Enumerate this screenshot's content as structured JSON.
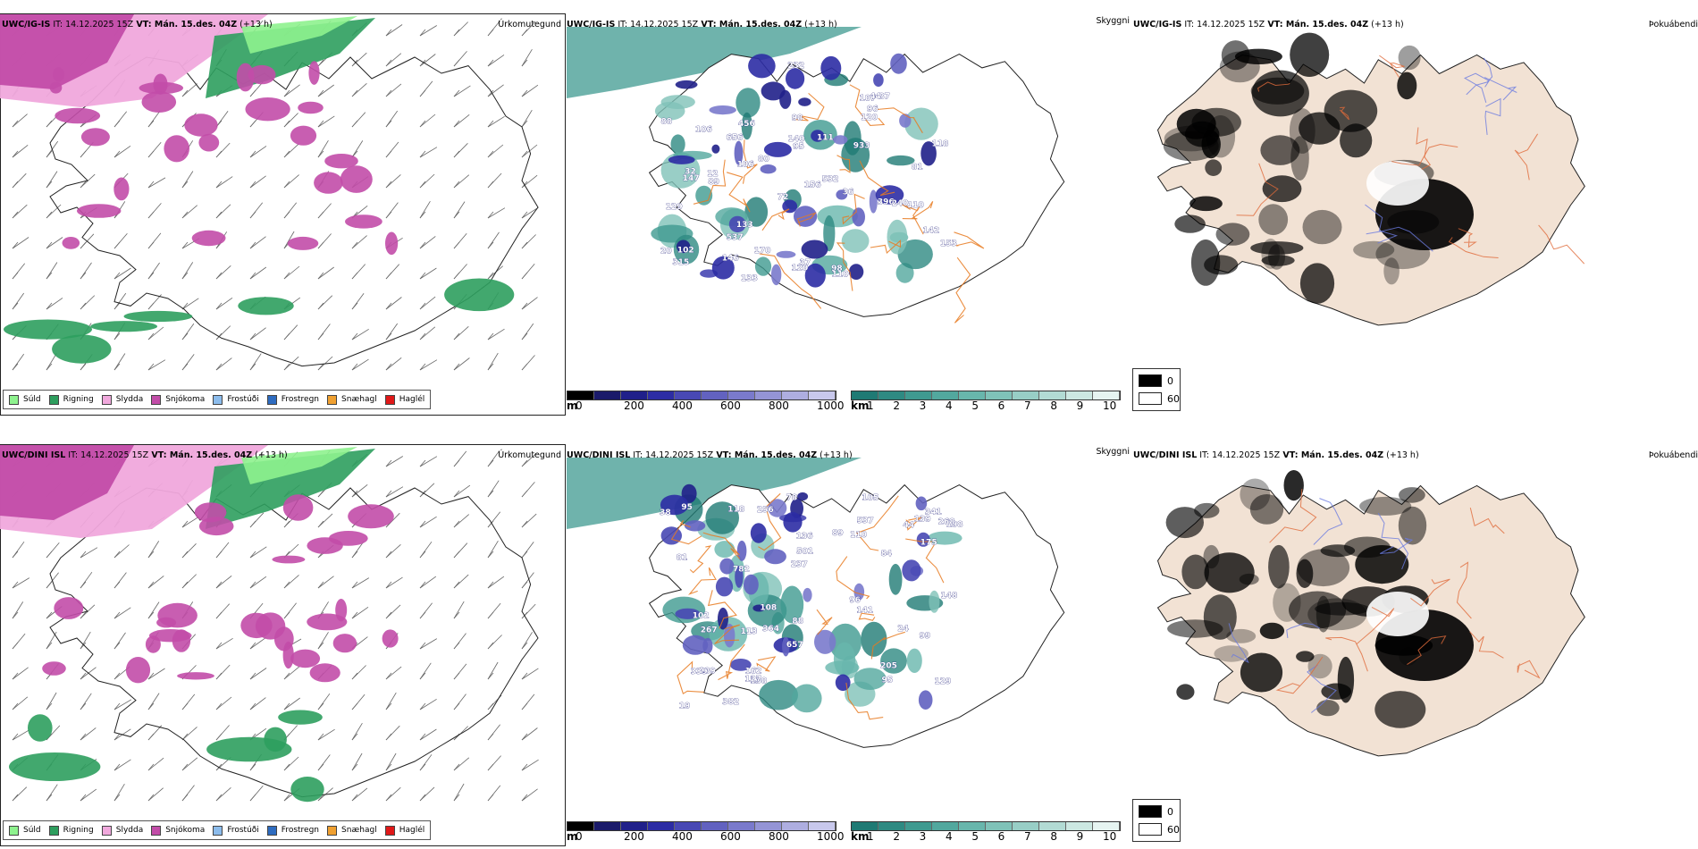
{
  "rows": [
    {
      "id": "row1",
      "precip": {
        "header_model": "UWC/IG-IS",
        "header_it_label": " IT: ",
        "header_it": "14.12.2025 15Z",
        "header_vt_label": " VT: ",
        "header_vt": "Mán. 15.des. 04Z",
        "header_lead": " (+13 h)",
        "title_right": "Úrkomutegund"
      },
      "cloud": {
        "header_model": "UWC/IG-IS",
        "header_it_label": " IT: ",
        "header_it": "14.12.2025 15Z",
        "header_vt_label": " VT: ",
        "header_vt": "Mán. 15.des. 04Z",
        "header_lead": " (+13 h)",
        "title_right": "Skyggni",
        "labels": [
          "315",
          "107",
          "153",
          "232",
          "140",
          "120",
          "133",
          "396",
          "456",
          "81",
          "118",
          "87",
          "532",
          "170",
          "146",
          "120",
          "106",
          "20",
          "98",
          "32",
          "95",
          "110",
          "106",
          "142",
          "129",
          "96",
          "933",
          "656",
          "89",
          "147",
          "111",
          "110",
          "156",
          "133",
          "102",
          "537",
          "240",
          "12",
          "36",
          "72",
          "37",
          "88",
          "98",
          "80",
          "44"
        ]
      },
      "fog": {
        "header_model": "UWC/IG-IS",
        "header_it_label": " IT: ",
        "header_it": "14.12.2025 15Z",
        "header_vt_label": " VT: ",
        "header_vt": "Mán. 15.des. 04Z",
        "header_lead": " (+13 h)",
        "title_right": "Þokuábendi"
      }
    },
    {
      "id": "row2",
      "precip": {
        "header_model": "UWC/DINI ISL",
        "header_it_label": " IT: ",
        "header_it": "14.12.2025 15Z",
        "header_vt_label": " VT: ",
        "header_vt": "Mán. 15.des. 04Z",
        "header_lead": " (+13 h)",
        "title_right": "Úrkomutegund"
      },
      "cloud": {
        "header_model": "UWC/DINI ISL",
        "header_it_label": " IT: ",
        "header_it": "14.12.2025 15Z",
        "header_vt_label": " VT: ",
        "header_vt": "Mán. 15.des. 04Z",
        "header_lead": " (+13 h)",
        "title_right": "Skyggni",
        "labels": [
          "341",
          "267",
          "162",
          "175",
          "198",
          "118",
          "205",
          "136",
          "113",
          "44",
          "268",
          "95",
          "88",
          "84",
          "38",
          "148",
          "382",
          "364",
          "537",
          "141",
          "189",
          "129",
          "237",
          "105",
          "95",
          "99",
          "108",
          "78",
          "138",
          "657",
          "256",
          "81",
          "127",
          "102",
          "501",
          "782",
          "339",
          "139",
          "96",
          "110",
          "89",
          "24",
          "19"
        ]
      },
      "fog": {
        "header_model": "UWC/DINI ISL",
        "header_it_label": " IT: ",
        "header_it": "14.12.2025 15Z",
        "header_vt_label": " VT: ",
        "header_vt": "Mán. 15.des. 04Z",
        "header_lead": " (+13 h)",
        "title_right": "Þokuábendi"
      }
    }
  ],
  "precip_legend": [
    {
      "label": "Súld",
      "color": "#8ef28e"
    },
    {
      "label": "Rigning",
      "color": "#2e9e5e"
    },
    {
      "label": "Slydda",
      "color": "#f0a8dc"
    },
    {
      "label": "Snjókoma",
      "color": "#c24ca8"
    },
    {
      "label": "Frostúði",
      "color": "#8cbcec"
    },
    {
      "label": "Frostregn",
      "color": "#2e6cc0"
    },
    {
      "label": "Snæhagl",
      "color": "#f0a030"
    },
    {
      "label": "Haglél",
      "color": "#e01818"
    }
  ],
  "cloudbase_bar": {
    "unit": "m",
    "ticks": [
      "0",
      "200",
      "400",
      "600",
      "800",
      "1000"
    ],
    "colors": [
      "#000000",
      "#1a1a6a",
      "#20208a",
      "#2c2ca4",
      "#4848b4",
      "#6262c0",
      "#7a7acc",
      "#9494d6",
      "#aeaee0",
      "#c8c8ec"
    ]
  },
  "cloudcover_bar": {
    "unit": "km",
    "ticks": [
      "1",
      "2",
      "3",
      "4",
      "5",
      "6",
      "7",
      "8",
      "9",
      "10"
    ],
    "colors": [
      "#1f7a74",
      "#2e8a82",
      "#3f9a90",
      "#52a89e",
      "#68b6ac",
      "#7fc2b8",
      "#98cec6",
      "#b2dbd4",
      "#cce8e2",
      "#e6f4f1"
    ]
  },
  "fog_legend": {
    "top_label": "0",
    "bottom_label": "60",
    "colors": {
      "top": "#000000",
      "bottom": "#ffffff"
    }
  },
  "colors": {
    "land": "#ffffff",
    "fog_land": "#f2e2d4",
    "rivers": "#e87a20",
    "roads": "#e06a3a",
    "coast": "#111111"
  }
}
